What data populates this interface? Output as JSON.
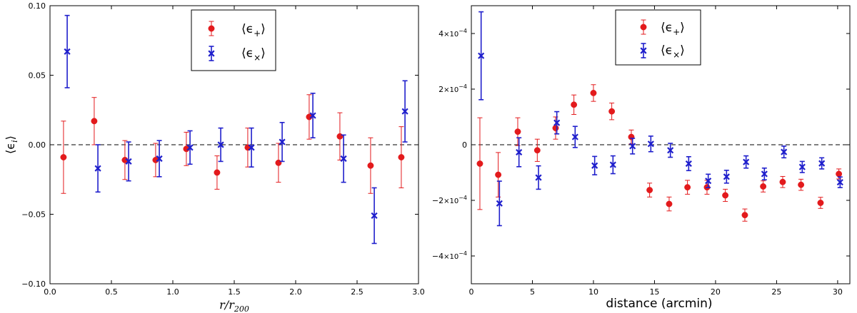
{
  "chart_data": [
    {
      "type": "scatter",
      "panel": "left",
      "xlabel": "r/r",
      "xlabel_sub": "200",
      "ylabel": "⟨ϵ",
      "ylabel_sub": "i",
      "ylabel_close": "⟩",
      "xlim": [
        0.0,
        3.0
      ],
      "ylim": [
        -0.1,
        0.1
      ],
      "xticks": [
        0.0,
        0.5,
        1.0,
        1.5,
        2.0,
        2.5,
        3.0
      ],
      "xtick_labels": [
        "0.0",
        "0.5",
        "1.0",
        "1.5",
        "2.0",
        "2.5",
        "3.0"
      ],
      "yticks": [
        -0.1,
        -0.05,
        0.0,
        0.05,
        0.1
      ],
      "ytick_labels": [
        "−0.10",
        "−0.05",
        "0.00",
        "0.05",
        "0.10"
      ],
      "reference_line": 0.0,
      "legend_position": "top-center",
      "series": [
        {
          "name": "⟨ϵ+⟩",
          "label_main": "⟨ϵ",
          "label_sub": "+",
          "label_close": "⟩",
          "marker": "circle",
          "color": "#e31a1c",
          "x": [
            0.11,
            0.36,
            0.61,
            0.86,
            1.11,
            1.36,
            1.61,
            1.86,
            2.11,
            2.36,
            2.61,
            2.86
          ],
          "y": [
            -0.009,
            0.017,
            -0.011,
            -0.011,
            -0.003,
            -0.02,
            -0.002,
            -0.013,
            0.02,
            0.006,
            -0.015,
            -0.009
          ],
          "err": [
            0.026,
            0.017,
            0.014,
            0.012,
            0.012,
            0.012,
            0.014,
            0.014,
            0.016,
            0.017,
            0.02,
            0.022
          ]
        },
        {
          "name": "⟨ϵ×⟩",
          "label_main": "⟨ϵ",
          "label_sub": "×",
          "label_close": "⟩",
          "marker": "x",
          "color": "#1f1fcc",
          "x": [
            0.14,
            0.39,
            0.64,
            0.89,
            1.14,
            1.39,
            1.64,
            1.89,
            2.14,
            2.39,
            2.64,
            2.89
          ],
          "y": [
            0.067,
            -0.017,
            -0.012,
            -0.01,
            -0.002,
            0.0,
            -0.002,
            0.002,
            0.021,
            -0.01,
            -0.051,
            0.024
          ],
          "err": [
            0.026,
            0.017,
            0.014,
            0.013,
            0.012,
            0.012,
            0.014,
            0.014,
            0.016,
            0.017,
            0.02,
            0.022
          ]
        }
      ]
    },
    {
      "type": "scatter",
      "panel": "right",
      "xlabel": "distance (arcmin)",
      "xlim": [
        0,
        31
      ],
      "ylim": [
        -5.0,
        5.0
      ],
      "y_scale_note": "values in units of 10^-4",
      "xticks": [
        0,
        5,
        10,
        15,
        20,
        25,
        30
      ],
      "xtick_labels": [
        "0",
        "5",
        "10",
        "15",
        "20",
        "25",
        "30"
      ],
      "yticks": [
        -4,
        -2,
        0,
        2,
        4
      ],
      "ytick_labels": [
        {
          "mant": "−4",
          "base": "×10",
          "exp": "−4"
        },
        {
          "mant": "−2",
          "base": "×10",
          "exp": "−4"
        },
        {
          "mant": "0",
          "base": "",
          "exp": ""
        },
        {
          "mant": "2",
          "base": "×10",
          "exp": "−4"
        },
        {
          "mant": "4",
          "base": "×10",
          "exp": "−4"
        }
      ],
      "reference_line": 0.0,
      "legend_position": "top-center",
      "series": [
        {
          "name": "⟨ϵ+⟩",
          "label_main": "⟨ϵ",
          "label_sub": "+",
          "label_close": "⟩",
          "marker": "circle",
          "color": "#e31a1c",
          "x": [
            0.7,
            2.2,
            3.8,
            5.4,
            6.9,
            8.4,
            10.0,
            11.5,
            13.1,
            14.6,
            16.2,
            17.7,
            19.3,
            20.8,
            22.4,
            23.9,
            25.5,
            27.0,
            28.6,
            30.1
          ],
          "y": [
            -0.68,
            -1.08,
            0.47,
            -0.2,
            0.6,
            1.44,
            1.86,
            1.2,
            0.28,
            -1.63,
            -2.13,
            -1.53,
            -1.53,
            -1.82,
            -2.53,
            -1.5,
            -1.34,
            -1.44,
            -2.09,
            -1.05
          ],
          "err": [
            1.65,
            0.8,
            0.5,
            0.4,
            0.4,
            0.35,
            0.3,
            0.3,
            0.25,
            0.25,
            0.25,
            0.25,
            0.25,
            0.22,
            0.22,
            0.2,
            0.2,
            0.2,
            0.2,
            0.18
          ]
        },
        {
          "name": "⟨ϵ×⟩",
          "label_main": "⟨ϵ",
          "label_sub": "×",
          "label_close": "⟩",
          "marker": "x",
          "color": "#1f1fcc",
          "x": [
            0.8,
            2.3,
            3.9,
            5.5,
            7.0,
            8.5,
            10.1,
            11.6,
            13.2,
            14.7,
            16.3,
            17.8,
            19.4,
            20.9,
            22.5,
            24.0,
            25.6,
            27.1,
            28.7,
            30.2
          ],
          "y": [
            3.2,
            -2.11,
            -0.27,
            -1.18,
            0.79,
            0.28,
            -0.75,
            -0.72,
            -0.05,
            0.03,
            -0.2,
            -0.68,
            -1.3,
            -1.15,
            -0.62,
            -1.05,
            -0.26,
            -0.8,
            -0.67,
            -1.35
          ],
          "err": [
            1.58,
            0.8,
            0.52,
            0.42,
            0.4,
            0.38,
            0.33,
            0.32,
            0.28,
            0.28,
            0.25,
            0.25,
            0.24,
            0.23,
            0.22,
            0.21,
            0.21,
            0.2,
            0.2,
            0.19
          ]
        }
      ]
    }
  ]
}
